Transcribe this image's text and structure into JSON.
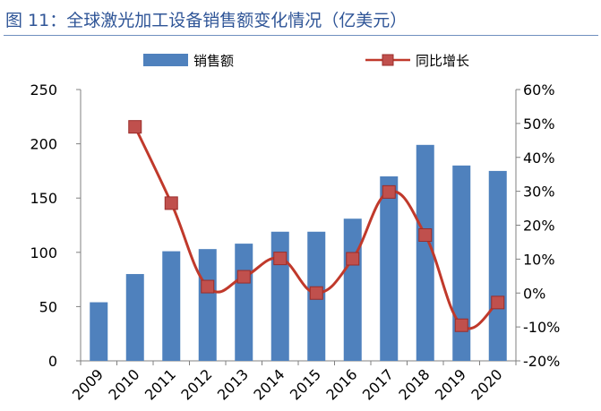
{
  "title": "图 11：全球激光加工设备销售额变化情况（亿美元）",
  "chart_data": {
    "type": "bar+line",
    "categories": [
      "2009",
      "2010",
      "2011",
      "2012",
      "2013",
      "2014",
      "2015",
      "2016",
      "2017",
      "2018",
      "2019",
      "2020"
    ],
    "series": [
      {
        "name": "销售额",
        "type": "bar",
        "axis": "left",
        "color": "#4f81bd",
        "values": [
          54,
          80,
          101,
          103,
          108,
          119,
          119,
          131,
          170,
          199,
          180,
          175
        ]
      },
      {
        "name": "同比增长",
        "type": "line",
        "axis": "right",
        "color": "#c0392b",
        "marker_color": "#c0504d",
        "values": [
          null,
          49,
          26.5,
          1.9,
          4.8,
          10.2,
          0,
          10.1,
          29.8,
          17.1,
          -9.5,
          -2.8
        ]
      }
    ],
    "y_left": {
      "lim": [
        0,
        250
      ],
      "ticks": [
        "0",
        "50",
        "100",
        "150",
        "200",
        "250"
      ]
    },
    "y_right": {
      "lim": [
        -20,
        60
      ],
      "ticks": [
        "-20%",
        "-10%",
        "0%",
        "10%",
        "20%",
        "30%",
        "40%",
        "50%",
        "60%"
      ]
    },
    "legend_position": "top",
    "grid": false
  }
}
